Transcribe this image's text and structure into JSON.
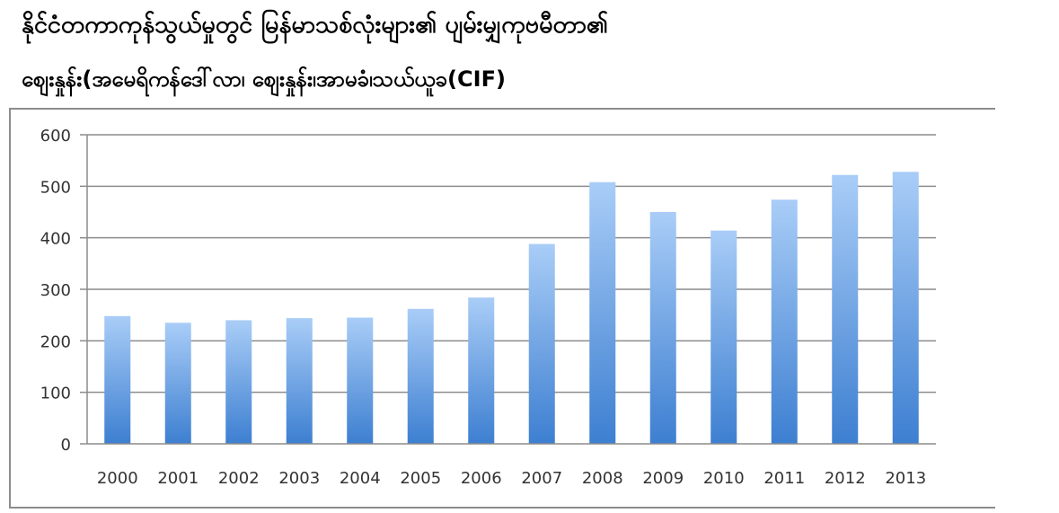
{
  "header": {
    "title_line1": "နိုင်ငံတကာကုန်သွယ်မှုတွင် မြန်မာသစ်လုံးများ၏ ပျမ်းမျှကုဗမီတာ၏",
    "title_line2": "စျေးနှုန်း(အမေရိကန်ဒေါ်လာ၊ စျေးနှုန်း၊အာမခံ၊သယ်ယူခ(CIF)"
  },
  "chart_data": {
    "type": "bar",
    "categories": [
      "2000",
      "2001",
      "2002",
      "2003",
      "2004",
      "2005",
      "2006",
      "2007",
      "2008",
      "2009",
      "2010",
      "2011",
      "2012",
      "2013"
    ],
    "values": [
      248,
      235,
      240,
      244,
      245,
      262,
      284,
      388,
      508,
      450,
      414,
      474,
      522,
      528
    ],
    "ylim": [
      0,
      600
    ],
    "yticks": [
      0,
      100,
      200,
      300,
      400,
      500,
      600
    ],
    "grid": true,
    "legend": "none",
    "bar_color_top": "#a9cdf7",
    "bar_color_bottom": "#3d7fd1",
    "grid_color": "#8c8c8c"
  }
}
